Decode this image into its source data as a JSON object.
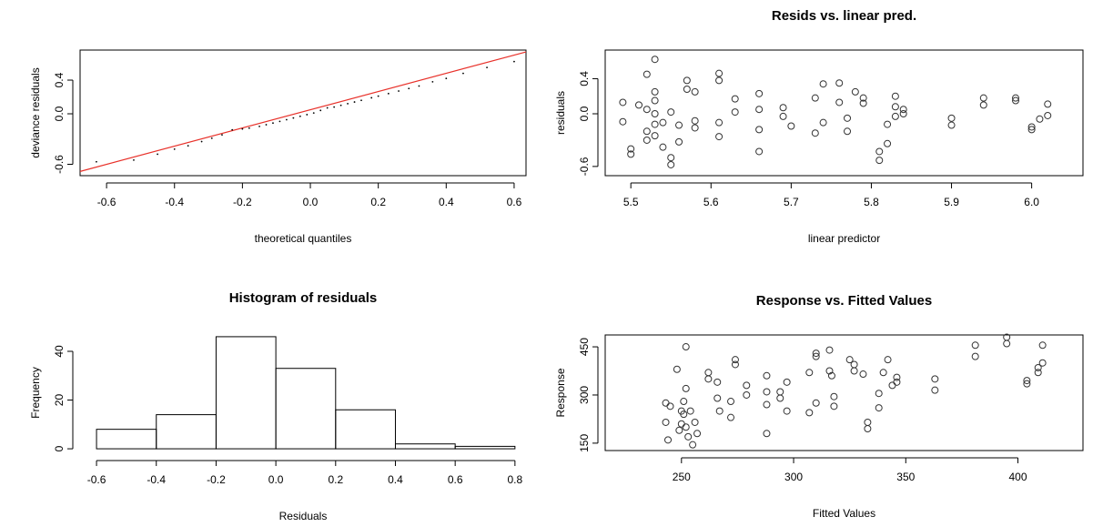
{
  "chart_data": [
    {
      "type": "qq",
      "x_label": "theoretical quantiles",
      "y_label": "deviance residuals",
      "x": [
        -0.63,
        -0.52,
        -0.45,
        -0.4,
        -0.36,
        -0.32,
        -0.29,
        -0.26,
        -0.23,
        -0.2,
        -0.18,
        -0.15,
        -0.13,
        -0.11,
        -0.09,
        -0.07,
        -0.05,
        -0.03,
        -0.01,
        0.01,
        0.03,
        0.05,
        0.07,
        0.09,
        0.11,
        0.13,
        0.15,
        0.18,
        0.2,
        0.23,
        0.26,
        0.29,
        0.32,
        0.36,
        0.4,
        0.45,
        0.52,
        0.6
      ],
      "values": [
        -0.57,
        -0.55,
        -0.48,
        -0.42,
        -0.38,
        -0.33,
        -0.29,
        -0.25,
        -0.19,
        -0.18,
        -0.17,
        -0.15,
        -0.13,
        -0.11,
        -0.09,
        -0.07,
        -0.05,
        -0.03,
        -0.01,
        0.01,
        0.04,
        0.07,
        0.08,
        0.1,
        0.12,
        0.14,
        0.16,
        0.19,
        0.21,
        0.24,
        0.27,
        0.3,
        0.33,
        0.38,
        0.42,
        0.48,
        0.55,
        0.62
      ],
      "color": "#000000",
      "reference_line": {
        "color": "#e8312a",
        "x": [
          -0.678,
          0.635
        ],
        "values": [
          -0.685,
          0.735
        ]
      },
      "xlim": [
        -0.678,
        0.635
      ],
      "ylim": [
        -0.735,
        0.757
      ],
      "xticks": [
        -0.6,
        -0.4,
        -0.2,
        {
          "value": 0,
          "label": "0.0"
        },
        0.2,
        0.4,
        0.6
      ],
      "yticks": [
        -0.6,
        {
          "value": 0,
          "label": "0.0"
        },
        0.4
      ],
      "box": true
    },
    {
      "type": "scatter",
      "title": "Resids vs. linear pred.",
      "x_label": "linear predictor",
      "y_label": "residuals",
      "x": [
        5.49,
        5.49,
        5.5,
        5.5,
        5.51,
        5.52,
        5.52,
        5.52,
        5.52,
        5.53,
        5.53,
        5.53,
        5.53,
        5.53,
        5.53,
        5.54,
        5.54,
        5.55,
        5.55,
        5.55,
        5.56,
        5.56,
        5.57,
        5.57,
        5.58,
        5.58,
        5.58,
        5.61,
        5.61,
        5.61,
        5.61,
        5.63,
        5.63,
        5.66,
        5.66,
        5.66,
        5.66,
        5.69,
        5.69,
        5.7,
        5.73,
        5.73,
        5.74,
        5.74,
        5.76,
        5.76,
        5.77,
        5.77,
        5.78,
        5.79,
        5.79,
        5.81,
        5.81,
        5.82,
        5.82,
        5.83,
        5.83,
        5.83,
        5.84,
        5.84,
        5.9,
        5.9,
        5.94,
        5.94,
        5.98,
        5.98,
        6.0,
        6.0,
        6.01,
        6.02,
        6.02
      ],
      "values": [
        0.13,
        -0.09,
        -0.4,
        -0.46,
        0.1,
        0.45,
        0.05,
        -0.2,
        -0.3,
        0.62,
        0.25,
        0.15,
        0.0,
        -0.12,
        -0.25,
        -0.1,
        -0.38,
        0.02,
        -0.5,
        -0.58,
        -0.13,
        -0.32,
        0.38,
        0.28,
        0.25,
        -0.08,
        -0.16,
        0.46,
        0.38,
        -0.1,
        -0.26,
        0.17,
        0.02,
        0.23,
        0.05,
        -0.18,
        -0.43,
        0.07,
        -0.03,
        -0.14,
        0.18,
        -0.22,
        0.34,
        -0.1,
        0.35,
        0.13,
        -0.05,
        -0.2,
        0.25,
        0.18,
        0.12,
        -0.43,
        -0.53,
        -0.34,
        -0.12,
        0.2,
        0.08,
        -0.03,
        0.0,
        0.05,
        -0.05,
        -0.13,
        0.18,
        0.1,
        0.18,
        0.15,
        -0.15,
        -0.18,
        -0.06,
        0.11,
        -0.02
      ],
      "color": "#333333",
      "xlim": [
        5.468,
        6.064
      ],
      "ylim": [
        -0.705,
        0.726
      ],
      "xticks": [
        5.5,
        5.6,
        5.7,
        5.8,
        5.9,
        {
          "value": 6,
          "label": "6.0"
        }
      ],
      "yticks": [
        -0.6,
        {
          "value": 0,
          "label": "0.0"
        },
        0.4
      ],
      "box": true
    },
    {
      "type": "histogram",
      "title": "Histogram of residuals",
      "x_label": "Residuals",
      "y_label": "Frequency",
      "bins": [
        -0.6,
        -0.4,
        -0.2,
        0,
        0.2,
        0.4,
        0.6,
        0.8
      ],
      "values": [
        8,
        14,
        46,
        33,
        16,
        2,
        1
      ],
      "color": "#000000",
      "xlim": [
        -0.655,
        0.837
      ],
      "ylim": [
        -1.84,
        47.84
      ],
      "xticks": [
        -0.6,
        -0.4,
        -0.2,
        {
          "value": 0,
          "label": "0.0"
        },
        0.2,
        0.4,
        0.6,
        0.8
      ],
      "yticks": [
        0,
        20,
        40
      ],
      "box": false
    },
    {
      "type": "scatter",
      "title": "Response vs. Fitted Values",
      "x_label": "Fitted Values",
      "y_label": "Response",
      "x": [
        243,
        243,
        244,
        245,
        248,
        249,
        250,
        250,
        251,
        251,
        252,
        252,
        252,
        253,
        254,
        255,
        256,
        257,
        262,
        262,
        266,
        266,
        267,
        272,
        272,
        274,
        274,
        279,
        279,
        288,
        288,
        288,
        288,
        294,
        294,
        297,
        297,
        307,
        307,
        310,
        310,
        310,
        316,
        316,
        317,
        318,
        318,
        325,
        327,
        327,
        331,
        333,
        333,
        338,
        338,
        340,
        342,
        344,
        346,
        346,
        363,
        363,
        381,
        381,
        395,
        395,
        404,
        404,
        409,
        409,
        411,
        411
      ],
      "values": [
        275,
        215,
        160,
        265,
        380,
        190,
        250,
        210,
        280,
        240,
        450,
        320,
        200,
        170,
        250,
        145,
        215,
        180,
        370,
        350,
        340,
        290,
        250,
        280,
        230,
        410,
        395,
        330,
        300,
        360,
        310,
        270,
        180,
        310,
        290,
        340,
        250,
        370,
        245,
        430,
        420,
        275,
        440,
        375,
        360,
        295,
        265,
        410,
        395,
        375,
        365,
        215,
        195,
        260,
        305,
        370,
        410,
        330,
        355,
        340,
        350,
        315,
        455,
        420,
        480,
        460,
        345,
        335,
        385,
        370,
        455,
        400
      ],
      "color": "#333333",
      "xlim": [
        216,
        429
      ],
      "ylim": [
        127,
        487
      ],
      "xticks": [
        250,
        300,
        350,
        400
      ],
      "yticks": [
        150,
        300,
        450
      ],
      "box": true
    }
  ]
}
